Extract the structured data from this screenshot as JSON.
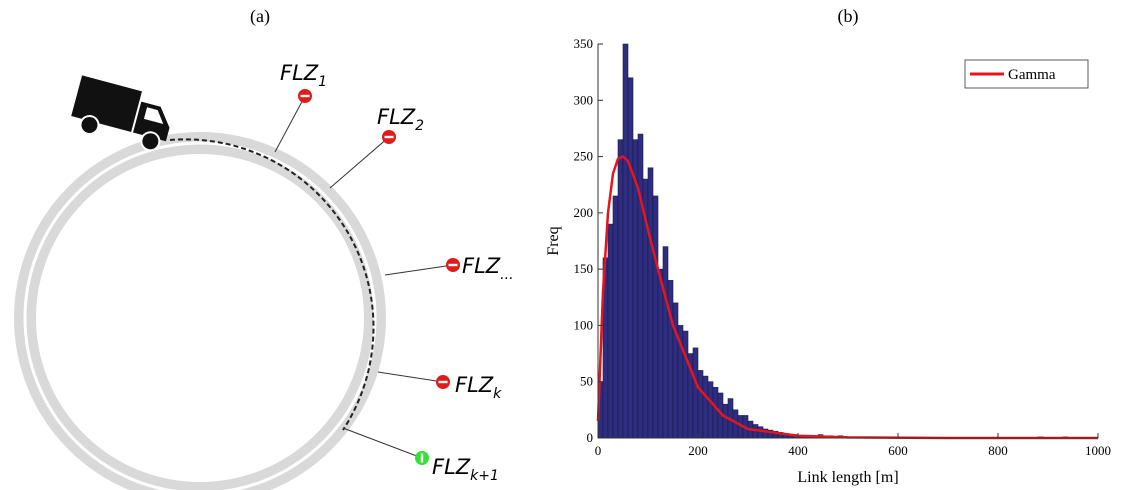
{
  "diagram": {
    "panel_label": "(a)",
    "zones": [
      {
        "base": "FLZ",
        "sub": "1"
      },
      {
        "base": "FLZ",
        "sub": "2"
      },
      {
        "base": "FLZ",
        "sub": "..."
      },
      {
        "base": "FLZ",
        "sub": "k"
      },
      {
        "base": "FLZ",
        "sub": "k+1"
      }
    ]
  },
  "chart_data": {
    "type": "histogram",
    "title": "(b)",
    "x_label": "Link length [m]",
    "y_label": "Freq",
    "color": "#2e2d80",
    "edge_color": "#1a1a4a",
    "bins": [
      0,
      10,
      20,
      30,
      40,
      50,
      60,
      70,
      80,
      90,
      100,
      110,
      120,
      130,
      140,
      150,
      160,
      170,
      180,
      190,
      200,
      210,
      220,
      230,
      240,
      250,
      260,
      270,
      280,
      290,
      300,
      310,
      320,
      330,
      340,
      350,
      360,
      370,
      380,
      390,
      400,
      410,
      420,
      430,
      440,
      450,
      460,
      470,
      480,
      490,
      500,
      510,
      520,
      530,
      540,
      550,
      560,
      570,
      580,
      590,
      600,
      610,
      620,
      630,
      640,
      650,
      660,
      670,
      680,
      690,
      700,
      710,
      720,
      730,
      740,
      750,
      760,
      770,
      780,
      790,
      800,
      810,
      820,
      830,
      840,
      850,
      860,
      870,
      880,
      890,
      900,
      910,
      920,
      930,
      940,
      950,
      960,
      970,
      980,
      990,
      1000
    ],
    "values": [
      50,
      160,
      190,
      215,
      265,
      350,
      320,
      265,
      270,
      230,
      240,
      215,
      150,
      170,
      140,
      120,
      100,
      95,
      75,
      80,
      60,
      55,
      50,
      45,
      40,
      30,
      35,
      25,
      20,
      20,
      15,
      12,
      10,
      8,
      7,
      6,
      5,
      4,
      3,
      3,
      2,
      2,
      1,
      1,
      3,
      1,
      2,
      1,
      2,
      1,
      1,
      0,
      1,
      0,
      0,
      1,
      0,
      0,
      0,
      0,
      1,
      0,
      1,
      0,
      0,
      0,
      0,
      0,
      0,
      0,
      0,
      0,
      0,
      0,
      0,
      0,
      0,
      0,
      0,
      0,
      0,
      0,
      0,
      0,
      0,
      0,
      0,
      0,
      1,
      0,
      0,
      0,
      0,
      1,
      0,
      0,
      0,
      0,
      0,
      0
    ],
    "series": [
      {
        "name": "Gamma",
        "color": "#e8141b",
        "x": [
          0,
          10,
          20,
          30,
          40,
          50,
          60,
          80,
          100,
          120,
          150,
          200,
          250,
          300,
          400,
          500,
          700,
          1000
        ],
        "values": [
          15,
          130,
          200,
          235,
          248,
          250,
          246,
          222,
          185,
          150,
          100,
          45,
          20,
          8,
          2,
          0.5,
          0,
          0
        ]
      }
    ],
    "xlim": [
      0,
      1000
    ],
    "xticks": [
      0,
      200,
      400,
      600,
      800,
      1000
    ],
    "ylim": [
      0,
      350
    ],
    "yticks": [
      0,
      50,
      100,
      150,
      200,
      250,
      300,
      350
    ],
    "legend": "top-right"
  }
}
